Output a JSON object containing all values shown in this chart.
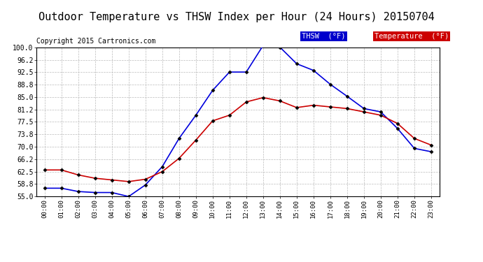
{
  "title": "Outdoor Temperature vs THSW Index per Hour (24 Hours) 20150704",
  "copyright": "Copyright 2015 Cartronics.com",
  "hours": [
    "00:00",
    "01:00",
    "02:00",
    "03:00",
    "04:00",
    "05:00",
    "06:00",
    "07:00",
    "08:00",
    "09:00",
    "10:00",
    "11:00",
    "12:00",
    "13:00",
    "14:00",
    "15:00",
    "16:00",
    "17:00",
    "18:00",
    "19:00",
    "20:00",
    "21:00",
    "22:00",
    "23:00"
  ],
  "thsw": [
    57.5,
    57.5,
    56.5,
    56.2,
    56.2,
    55.0,
    58.5,
    64.0,
    72.5,
    79.5,
    87.0,
    92.5,
    92.5,
    100.5,
    100.0,
    95.0,
    93.0,
    88.8,
    85.2,
    81.5,
    80.5,
    75.5,
    69.5,
    68.5
  ],
  "temperature": [
    63.0,
    63.0,
    61.5,
    60.5,
    60.0,
    59.5,
    60.2,
    62.5,
    66.5,
    72.0,
    77.8,
    79.5,
    83.5,
    84.8,
    83.8,
    81.8,
    82.5,
    82.0,
    81.5,
    80.5,
    79.5,
    77.0,
    72.5,
    70.5
  ],
  "thsw_color": "#0000dd",
  "temp_color": "#cc0000",
  "bg_color": "#ffffff",
  "plot_bg_color": "#ffffff",
  "grid_color": "#bbbbbb",
  "title_fontsize": 11,
  "copyright_fontsize": 7,
  "legend_thsw_bg": "#0000cc",
  "legend_temp_bg": "#cc0000",
  "legend_thsw_text": "THSW  (°F)",
  "legend_temp_text": "Temperature  (°F)",
  "yticks": [
    55.0,
    58.8,
    62.5,
    66.2,
    70.0,
    73.8,
    77.5,
    81.2,
    85.0,
    88.8,
    92.5,
    96.2,
    100.0
  ],
  "ylim": [
    55.0,
    100.0
  ],
  "marker": "D",
  "marker_size": 2.5,
  "linewidth": 1.2
}
